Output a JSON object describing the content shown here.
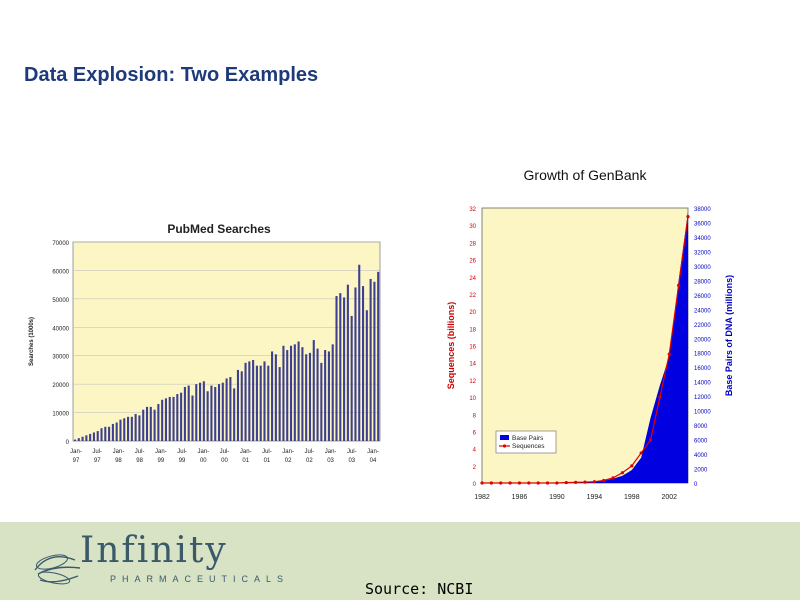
{
  "slide": {
    "title": "Data Explosion:  Two Examples",
    "source": "Source: NCBI",
    "logo": {
      "name": "Infinity",
      "subtitle": "PHARMACEUTICALS"
    },
    "colors": {
      "title": "#1f3a7a",
      "footer_bg": "#d8e2c4",
      "plot_bg": "#fbf6c4"
    }
  },
  "chart_data": [
    {
      "type": "bar",
      "title": "PubMed Searches",
      "ylabel": "Searches (1000s)",
      "ylim": [
        0,
        70000
      ],
      "yticks": [
        0,
        10000,
        20000,
        30000,
        40000,
        50000,
        60000,
        70000
      ],
      "xtick_labels": [
        [
          "Jan-",
          "97"
        ],
        [
          "Jul-",
          "97"
        ],
        [
          "Jan-",
          "98"
        ],
        [
          "Jul-",
          "98"
        ],
        [
          "Jan-",
          "99"
        ],
        [
          "Jul-",
          "99"
        ],
        [
          "Jan-",
          "00"
        ],
        [
          "Jul-",
          "00"
        ],
        [
          "Jan-",
          "01"
        ],
        [
          "Jul-",
          "01"
        ],
        [
          "Jan-",
          "02"
        ],
        [
          "Jul-",
          "02"
        ],
        [
          "Jan-",
          "03"
        ],
        [
          "Jul-",
          "03"
        ],
        [
          "Jan-",
          "04"
        ]
      ],
      "bar_color": "#3d3f8f",
      "values": [
        500,
        1000,
        1500,
        2000,
        2500,
        3000,
        3500,
        4500,
        5000,
        5000,
        6000,
        6500,
        7500,
        8000,
        8500,
        8500,
        9500,
        9000,
        11000,
        12000,
        12000,
        11000,
        13000,
        14500,
        15000,
        15500,
        15500,
        16500,
        17000,
        19000,
        19500,
        16000,
        20000,
        20500,
        21000,
        17500,
        19500,
        19000,
        20000,
        20500,
        22000,
        22500,
        18500,
        25000,
        24500,
        27500,
        28000,
        28500,
        26500,
        26500,
        28000,
        26500,
        31500,
        30500,
        26000,
        33500,
        32000,
        33500,
        34000,
        35000,
        33000,
        30500,
        31000,
        35500,
        32500,
        27500,
        32000,
        31500,
        34000,
        51000,
        52000,
        50500,
        55000,
        44000,
        54000,
        62000,
        54500,
        46000,
        57000,
        56000,
        59500
      ]
    },
    {
      "type": "line",
      "title": "Growth of GenBank",
      "ylabel": "Sequences (billions)",
      "y2label": "Base Pairs of DNA (millions)",
      "ylim": [
        0,
        32
      ],
      "y2lim": [
        0,
        38000
      ],
      "xlim": [
        1982,
        2004
      ],
      "yticks": [
        0,
        2,
        4,
        6,
        8,
        10,
        12,
        14,
        16,
        18,
        20,
        22,
        24,
        26,
        28,
        30,
        32
      ],
      "y2ticks": [
        0,
        2000,
        4000,
        6000,
        8000,
        10000,
        12000,
        14000,
        16000,
        18000,
        20000,
        22000,
        24000,
        26000,
        28000,
        30000,
        32000,
        34000,
        36000,
        38000
      ],
      "xticks": [
        1982,
        1986,
        1990,
        1994,
        1998,
        2002
      ],
      "legend": {
        "placement": "lower-left",
        "entries": [
          "Base Pairs",
          "Sequences"
        ]
      },
      "series": [
        {
          "name": "Base Pairs",
          "kind": "area",
          "color": "#0000e0",
          "x": [
            1982,
            1983,
            1984,
            1985,
            1986,
            1987,
            1988,
            1989,
            1990,
            1991,
            1992,
            1993,
            1994,
            1995,
            1996,
            1997,
            1998,
            1999,
            2000,
            2001,
            2002,
            2003,
            2004
          ],
          "values": [
            0,
            0,
            0,
            0,
            0,
            0,
            0,
            0,
            50,
            100,
            100,
            150,
            200,
            300,
            600,
            1000,
            1800,
            3500,
            9000,
            13500,
            17500,
            28000,
            37500
          ]
        },
        {
          "name": "Sequences",
          "kind": "line",
          "color": "#e00000",
          "x": [
            1982,
            1983,
            1984,
            1985,
            1986,
            1987,
            1988,
            1989,
            1990,
            1991,
            1992,
            1993,
            1994,
            1995,
            1996,
            1997,
            1998,
            1999,
            2000,
            2001,
            2002,
            2003,
            2004
          ],
          "values": [
            0,
            0,
            0,
            0,
            0,
            0,
            0,
            0,
            0,
            0.05,
            0.08,
            0.1,
            0.15,
            0.3,
            0.6,
            1.2,
            2,
            3.5,
            5,
            10,
            15,
            23,
            31
          ]
        }
      ]
    }
  ]
}
